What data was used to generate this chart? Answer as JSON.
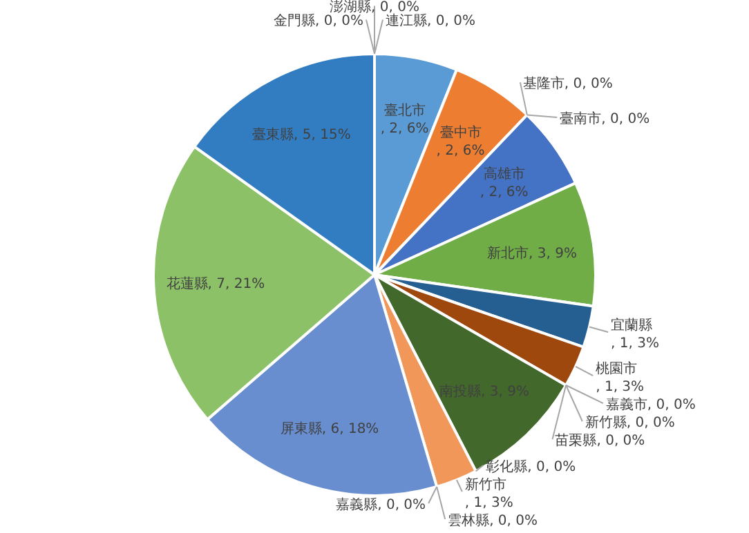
{
  "chart_data": {
    "type": "pie",
    "categories": [
      "臺北市",
      "臺中市",
      "基隆市",
      "臺南市",
      "高雄市",
      "新北市",
      "宜蘭縣",
      "桃園市",
      "嘉義市",
      "新竹縣",
      "苗栗縣",
      "南投縣",
      "彰化縣",
      "新竹市",
      "雲林縣",
      "嘉義縣",
      "屏東縣",
      "花蓮縣",
      "臺東縣",
      "金門縣",
      "澎湖縣",
      "連江縣"
    ],
    "values": [
      2,
      2,
      0,
      0,
      2,
      3,
      1,
      1,
      0,
      0,
      0,
      3,
      0,
      1,
      0,
      0,
      6,
      7,
      5,
      0,
      0,
      0
    ],
    "colors": [
      "#5b9bd5",
      "#ed7d31",
      null,
      null,
      "#4472c4",
      "#70ad47",
      "#255e91",
      "#9e480e",
      null,
      null,
      null,
      "#43682b",
      null,
      "#f1975a",
      null,
      null,
      "#698ed0",
      "#8cc168",
      "#327dc2",
      null,
      null,
      null
    ],
    "value_labels": [
      ", 2, 6%",
      ", 2, 6%",
      ", 0, 0%",
      ", 0, 0%",
      ", 2, 6%",
      ", 3, 9%",
      ", 1, 3%",
      ", 1, 3%",
      ", 0, 0%",
      ", 0, 0%",
      ", 0, 0%",
      ", 3, 9%",
      ", 0, 0%",
      ", 1, 3%",
      ", 0, 0%",
      ", 0, 0%",
      ", 6, 18%",
      ", 7, 21%",
      ", 5, 15%",
      ", 0, 0%",
      ", 0, 0%",
      ", 0, 0%"
    ]
  }
}
